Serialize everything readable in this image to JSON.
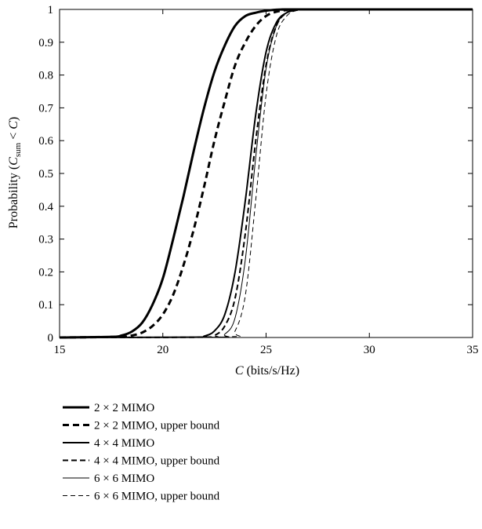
{
  "chart_data": {
    "type": "line",
    "xlabel_var": "C",
    "xlabel_unit": " (bits/s/Hz)",
    "ylabel_prefix": "Probability (",
    "ylabel_var": "C",
    "ylabel_sub": "sum",
    "ylabel_mid": " < ",
    "ylabel_var2": "C",
    "ylabel_suffix": ")",
    "xlim": [
      15,
      35
    ],
    "ylim": [
      0,
      1
    ],
    "xticks": [
      15,
      20,
      25,
      30,
      35
    ],
    "yticks": [
      0,
      0.1,
      0.2,
      0.3,
      0.4,
      0.5,
      0.6,
      0.7,
      0.8,
      0.9,
      1
    ],
    "grid": false,
    "legend_position": "below",
    "series": [
      {
        "name": "2 × 2 MIMO",
        "style": "solid",
        "weight": "thick",
        "x": [
          15,
          17.5,
          18,
          18.5,
          19,
          19.5,
          20,
          20.5,
          21,
          21.5,
          22,
          22.5,
          23,
          23.5,
          24,
          24.5,
          25,
          25.5,
          26,
          27,
          35
        ],
        "y": [
          0,
          0.002,
          0.006,
          0.018,
          0.045,
          0.1,
          0.18,
          0.3,
          0.43,
          0.57,
          0.7,
          0.81,
          0.89,
          0.95,
          0.98,
          0.99,
          0.996,
          0.999,
          1,
          1,
          1
        ]
      },
      {
        "name": "2 × 2 MIMO, upper bound",
        "style": "dashed",
        "weight": "thick",
        "x": [
          15,
          18,
          18.5,
          19,
          19.5,
          20,
          20.5,
          21,
          21.5,
          22,
          22.5,
          23,
          23.5,
          24,
          24.5,
          25,
          25.5,
          26,
          26.5,
          35
        ],
        "y": [
          0,
          0.002,
          0.006,
          0.015,
          0.035,
          0.07,
          0.13,
          0.22,
          0.33,
          0.46,
          0.6,
          0.72,
          0.83,
          0.9,
          0.95,
          0.98,
          0.993,
          0.998,
          1,
          1
        ]
      },
      {
        "name": "4 × 4 MIMO",
        "style": "solid",
        "weight": "medium",
        "x": [
          15,
          21.5,
          22,
          22.5,
          23,
          23.5,
          24,
          24.5,
          25,
          25.5,
          26,
          26.5,
          27,
          35
        ],
        "y": [
          0,
          0.001,
          0.004,
          0.02,
          0.07,
          0.2,
          0.42,
          0.68,
          0.87,
          0.96,
          0.99,
          0.998,
          1,
          1
        ]
      },
      {
        "name": "4 × 4 MIMO, upper bound",
        "style": "dashed",
        "weight": "medium",
        "x": [
          15,
          22,
          22.5,
          23,
          23.5,
          24,
          24.5,
          25,
          25.5,
          26,
          26.5,
          27,
          35
        ],
        "y": [
          0,
          0.001,
          0.006,
          0.035,
          0.12,
          0.32,
          0.6,
          0.83,
          0.95,
          0.99,
          0.998,
          1,
          1
        ]
      },
      {
        "name": "6 × 6 MIMO",
        "style": "solid",
        "weight": "thin",
        "x": [
          15,
          22.5,
          23,
          23.5,
          24,
          24.5,
          25,
          25.5,
          26,
          26.5,
          27,
          35
        ],
        "y": [
          0,
          0.001,
          0.01,
          0.06,
          0.24,
          0.55,
          0.82,
          0.95,
          0.99,
          0.999,
          1,
          1
        ]
      },
      {
        "name": "6 × 6 MIMO, upper bound",
        "style": "dashed",
        "weight": "thin",
        "x": [
          15,
          23,
          23.5,
          24,
          24.5,
          25,
          25.5,
          26,
          26.5,
          27,
          35
        ],
        "y": [
          0,
          0.002,
          0.02,
          0.13,
          0.42,
          0.74,
          0.92,
          0.98,
          0.997,
          1,
          1
        ]
      }
    ]
  }
}
